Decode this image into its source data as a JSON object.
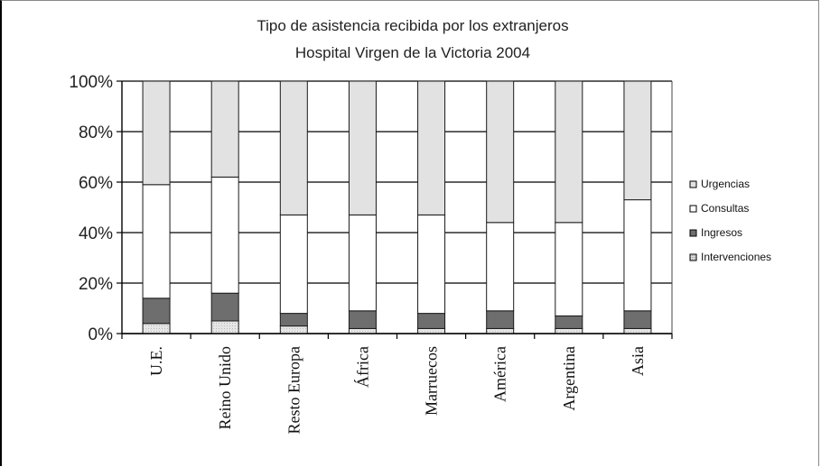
{
  "chart_data": {
    "type": "bar",
    "stacked": true,
    "percent_stacked": true,
    "title": "Tipo de asistencia recibida por los extranjeros",
    "subtitle": "Hospital Virgen de la Victoria 2004",
    "xlabel": "",
    "ylabel": "",
    "ylim": [
      0,
      100
    ],
    "y_ticks": [
      "0%",
      "20%",
      "40%",
      "60%",
      "80%",
      "100%"
    ],
    "grid": true,
    "legend_position": "right",
    "categories": [
      "U.E.",
      "Reino Unido",
      "Resto Europa",
      "África",
      "Marruecos",
      "América",
      "Argentina",
      "Asia"
    ],
    "series": [
      {
        "name": "Intervenciones",
        "values": [
          4,
          5,
          3,
          2,
          2,
          2,
          2,
          2
        ],
        "color": "#d8d8d8"
      },
      {
        "name": "Ingresos",
        "values": [
          10,
          11,
          5,
          7,
          6,
          7,
          5,
          7
        ],
        "color": "#6e6e6e"
      },
      {
        "name": "Consultas",
        "values": [
          45,
          46,
          39,
          38,
          39,
          35,
          37,
          44
        ],
        "color": "#ffffff"
      },
      {
        "name": "Urgencias",
        "values": [
          41,
          38,
          53,
          53,
          53,
          56,
          56,
          47
        ],
        "color": "#e2e2e2"
      }
    ],
    "legend_order": [
      "Urgencias",
      "Consultas",
      "Ingresos",
      "Intervenciones"
    ]
  }
}
